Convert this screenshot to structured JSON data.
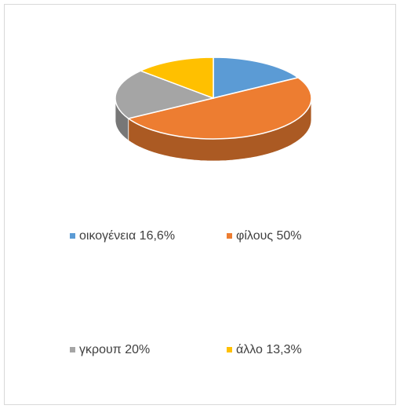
{
  "chart_data": {
    "type": "pie3d",
    "categories": [
      "οικογένεια 16,6%",
      "φίλους 50%",
      "γκρουπ 20%",
      "άλλο 13,3%"
    ],
    "values": [
      16.6,
      50,
      20,
      13.3
    ],
    "colors": [
      "#5b9bd5",
      "#ed7d31",
      "#a5a5a5",
      "#ffc000"
    ],
    "legend": "bottom"
  }
}
